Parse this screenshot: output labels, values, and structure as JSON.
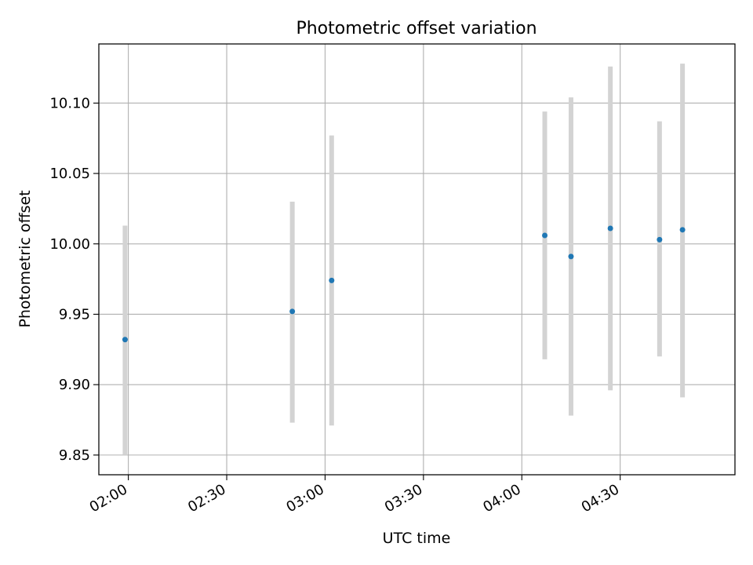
{
  "chart_data": {
    "type": "scatter",
    "title": "Photometric offset variation",
    "xlabel": "UTC time",
    "ylabel": "Photometric offset",
    "x_unit": "minutes",
    "xlim": [
      "01:51",
      "05:05"
    ],
    "ylim": [
      9.836,
      10.142
    ],
    "grid": true,
    "x_ticks": [
      "02:00",
      "02:30",
      "03:00",
      "03:30",
      "04:00",
      "04:30"
    ],
    "y_ticks": [
      "9.85",
      "9.90",
      "9.95",
      "10.00",
      "10.05",
      "10.10"
    ],
    "y_tick_values": [
      9.85,
      9.9,
      9.95,
      10.0,
      10.05,
      10.1
    ],
    "points": [
      {
        "x": "01:59",
        "y": 9.932,
        "y_low": 9.85,
        "y_high": 10.013
      },
      {
        "x": "02:50",
        "y": 9.952,
        "y_low": 9.873,
        "y_high": 10.03
      },
      {
        "x": "03:02",
        "y": 9.974,
        "y_low": 9.871,
        "y_high": 10.077
      },
      {
        "x": "04:07",
        "y": 10.006,
        "y_low": 9.918,
        "y_high": 10.094
      },
      {
        "x": "04:15",
        "y": 9.991,
        "y_low": 9.878,
        "y_high": 10.104
      },
      {
        "x": "04:27",
        "y": 10.011,
        "y_low": 9.896,
        "y_high": 10.126
      },
      {
        "x": "04:42",
        "y": 10.003,
        "y_low": 9.92,
        "y_high": 10.087
      },
      {
        "x": "04:49",
        "y": 10.01,
        "y_low": 9.891,
        "y_high": 10.128
      }
    ],
    "colors": {
      "marker": "#1f77b4",
      "errorbar": "#d3d3d3",
      "grid": "#b0b0b0"
    }
  }
}
